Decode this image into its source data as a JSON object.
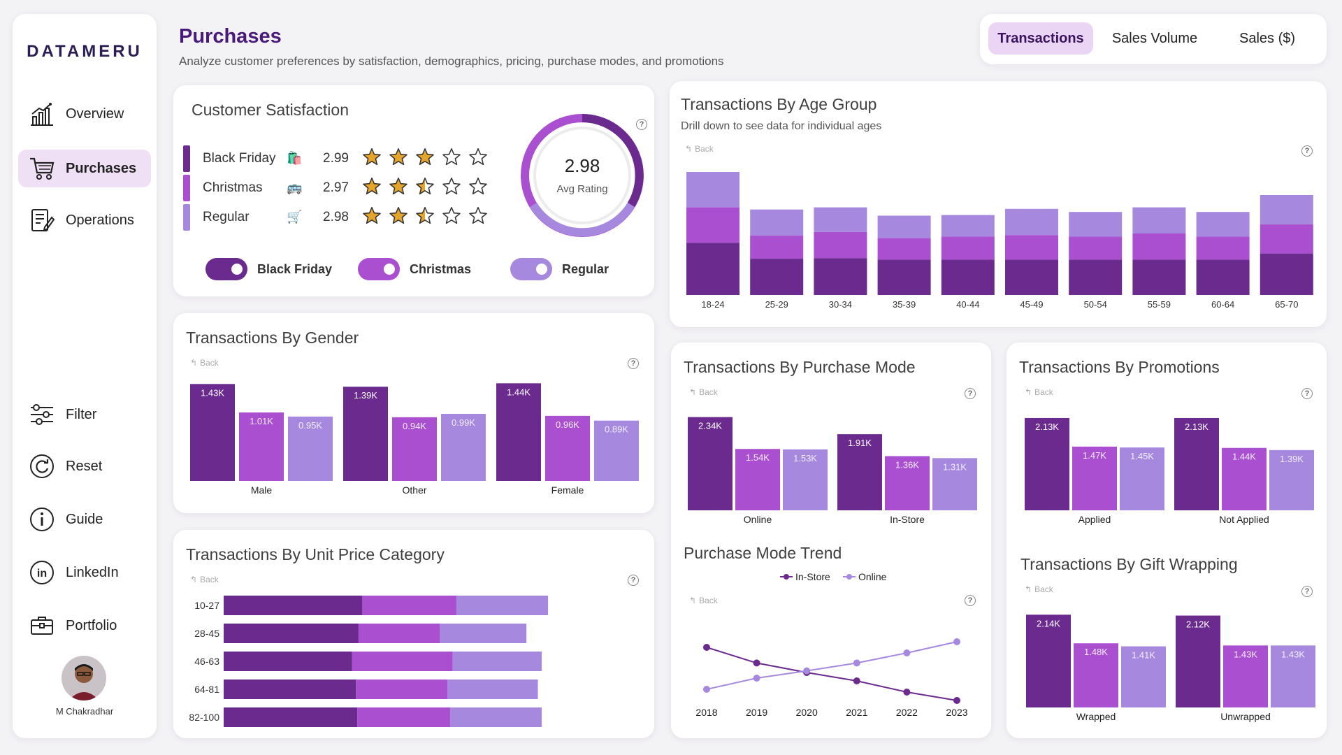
{
  "app": {
    "logo": "DATAMERU",
    "user_name": "M Chakradhar"
  },
  "sidebar": {
    "top_items": [
      {
        "label": "Overview",
        "icon": "bar-chart-icon",
        "active": false
      },
      {
        "label": "Purchases",
        "icon": "shopping-cart-icon",
        "active": true
      },
      {
        "label": "Operations",
        "icon": "operations-doc-icon",
        "active": false
      }
    ],
    "bottom_items": [
      {
        "label": "Filter",
        "icon": "filter-sliders-icon"
      },
      {
        "label": "Reset",
        "icon": "reset-icon"
      },
      {
        "label": "Guide",
        "icon": "info-icon"
      },
      {
        "label": "LinkedIn",
        "icon": "linkedin-icon"
      },
      {
        "label": "Portfolio",
        "icon": "briefcase-icon"
      }
    ]
  },
  "header": {
    "title": "Purchases",
    "subtitle": "Analyze customer preferences by satisfaction, demographics, pricing, purchase modes, and promotions"
  },
  "tabs": [
    {
      "label": "Transactions",
      "active": true
    },
    {
      "label": "Sales Volume",
      "active": false
    },
    {
      "label": "Sales ($)",
      "active": false
    }
  ],
  "colors": {
    "dark": "#6a2a8e",
    "mid": "#a94fcf",
    "light": "#a689de",
    "gold": "#e5a52b"
  },
  "satisfaction": {
    "title": "Customer Satisfaction",
    "rows": [
      {
        "name": "Black Friday",
        "emoji": "🛍️",
        "value": "2.99",
        "rating": 2.99,
        "color": "#6a2a8e"
      },
      {
        "name": "Christmas",
        "emoji": "🚌",
        "value": "2.97",
        "rating": 2.97,
        "color": "#a94fcf"
      },
      {
        "name": "Regular",
        "emoji": "🛒",
        "value": "2.98",
        "rating": 2.98,
        "color": "#a689de"
      }
    ],
    "avg_value": "2.98",
    "avg_label": "Avg Rating",
    "toggles": [
      {
        "label": "Black Friday",
        "color": "#6a2a8e"
      },
      {
        "label": "Christmas",
        "color": "#a94fcf"
      },
      {
        "label": "Regular",
        "color": "#a689de"
      }
    ]
  },
  "back_label": "Back",
  "help_label": "?",
  "chart_data": [
    {
      "id": "age",
      "type": "bar",
      "stacked": true,
      "title": "Transactions By Age Group",
      "subtitle": "Drill down to see data for individual ages",
      "categories": [
        "18-24",
        "25-29",
        "30-34",
        "35-39",
        "40-44",
        "45-49",
        "50-54",
        "55-59",
        "60-64",
        "65-70"
      ],
      "series": [
        {
          "values": [
            1.7,
            1.18,
            1.2,
            1.15,
            1.15,
            1.15,
            1.15,
            1.15,
            1.15,
            1.35
          ]
        },
        {
          "values": [
            1.15,
            0.75,
            0.85,
            0.7,
            0.75,
            0.8,
            0.75,
            0.85,
            0.75,
            0.95
          ]
        },
        {
          "values": [
            1.15,
            0.85,
            0.8,
            0.73,
            0.7,
            0.85,
            0.8,
            0.85,
            0.8,
            0.95
          ]
        }
      ]
    },
    {
      "id": "gender",
      "type": "bar",
      "title": "Transactions By Gender",
      "categories": [
        "Male",
        "Other",
        "Female"
      ],
      "series": [
        {
          "values": [
            1.43,
            1.39,
            1.44
          ],
          "labels": [
            "1.43K",
            "1.39K",
            "1.44K"
          ]
        },
        {
          "values": [
            1.01,
            0.94,
            0.96
          ],
          "labels": [
            "1.01K",
            "0.94K",
            "0.96K"
          ]
        },
        {
          "values": [
            0.95,
            0.99,
            0.89
          ],
          "labels": [
            "0.95K",
            "0.99K",
            "0.89K"
          ]
        }
      ]
    },
    {
      "id": "unit_price",
      "type": "bar",
      "orientation": "horizontal",
      "stacked": true,
      "title": "Transactions By Unit Price Category",
      "categories": [
        "10-27",
        "28-45",
        "46-63",
        "64-81",
        "82-100"
      ],
      "series": [
        {
          "values": [
            1.09,
            1.06,
            1.01,
            1.04,
            1.05
          ]
        },
        {
          "values": [
            0.74,
            0.64,
            0.79,
            0.72,
            0.73
          ]
        },
        {
          "values": [
            0.72,
            0.68,
            0.7,
            0.71,
            0.72
          ]
        }
      ]
    },
    {
      "id": "mode",
      "type": "bar",
      "title": "Transactions By Purchase Mode",
      "categories": [
        "Online",
        "In-Store"
      ],
      "series": [
        {
          "values": [
            2.34,
            1.91
          ],
          "labels": [
            "2.34K",
            "1.91K"
          ]
        },
        {
          "values": [
            1.54,
            1.36
          ],
          "labels": [
            "1.54K",
            "1.36K"
          ]
        },
        {
          "values": [
            1.53,
            1.31
          ],
          "labels": [
            "1.53K",
            "1.31K"
          ]
        }
      ]
    },
    {
      "id": "promo",
      "type": "bar",
      "title": "Transactions By Promotions",
      "categories": [
        "Applied",
        "Not Applied"
      ],
      "series": [
        {
          "values": [
            2.13,
            2.13
          ],
          "labels": [
            "2.13K",
            "2.13K"
          ]
        },
        {
          "values": [
            1.47,
            1.44
          ],
          "labels": [
            "1.47K",
            "1.44K"
          ]
        },
        {
          "values": [
            1.45,
            1.39
          ],
          "labels": [
            "1.45K",
            "1.39K"
          ]
        }
      ]
    },
    {
      "id": "gift",
      "type": "bar",
      "title": "Transactions By Gift Wrapping",
      "categories": [
        "Wrapped",
        "Unwrapped"
      ],
      "series": [
        {
          "values": [
            2.14,
            2.12
          ],
          "labels": [
            "2.14K",
            "2.12K"
          ]
        },
        {
          "values": [
            1.48,
            1.43
          ],
          "labels": [
            "1.48K",
            "1.43K"
          ]
        },
        {
          "values": [
            1.41,
            1.43
          ],
          "labels": [
            "1.41K",
            "1.43K"
          ]
        }
      ]
    },
    {
      "id": "trend",
      "type": "line",
      "title": "Purchase Mode Trend",
      "x": [
        "2018",
        "2019",
        "2020",
        "2021",
        "2022",
        "2023"
      ],
      "series": [
        {
          "name": "In-Store",
          "values": [
            2.0,
            1.72,
            1.55,
            1.4,
            1.2,
            1.05
          ],
          "color": "#6a2a8e"
        },
        {
          "name": "Online",
          "values": [
            1.25,
            1.45,
            1.58,
            1.72,
            1.9,
            2.1
          ],
          "color": "#a689de"
        }
      ]
    }
  ]
}
